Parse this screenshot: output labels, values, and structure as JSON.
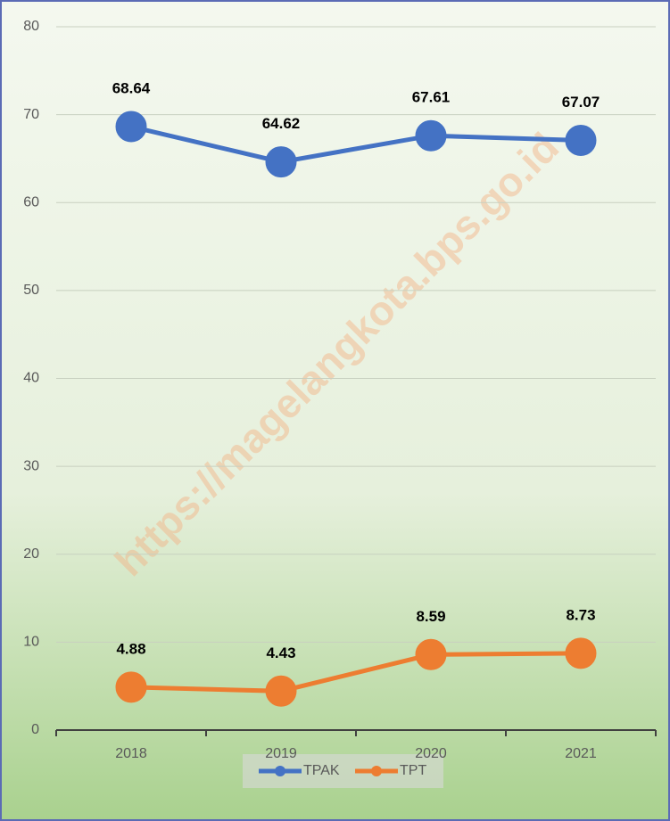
{
  "chart_data": {
    "type": "line",
    "categories": [
      "2018",
      "2019",
      "2020",
      "2021"
    ],
    "series": [
      {
        "name": "TPAK",
        "color": "#4472c4",
        "values": [
          68.64,
          64.62,
          67.61,
          67.07
        ]
      },
      {
        "name": "TPT",
        "color": "#ed7d31",
        "values": [
          4.88,
          4.43,
          8.59,
          8.73
        ]
      }
    ],
    "ylim": [
      0,
      80
    ],
    "yticks": [
      0,
      10,
      20,
      30,
      40,
      50,
      60,
      70,
      80
    ],
    "grid": true,
    "legend": "bottom",
    "watermark": "https://magelangkota.bps.go.id"
  }
}
